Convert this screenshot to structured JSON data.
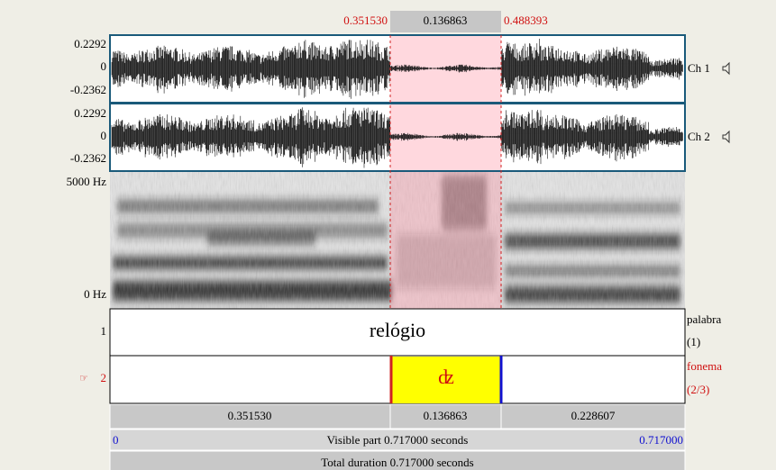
{
  "selection": {
    "start": "0.351530",
    "duration": "0.136863",
    "end": "0.488393"
  },
  "channels": [
    {
      "max": "0.2292",
      "zero": "0",
      "min": "-0.2362",
      "label": "Ch 1"
    },
    {
      "max": "0.2292",
      "zero": "0",
      "min": "-0.2362",
      "label": "Ch 2"
    }
  ],
  "spectrogram": {
    "max": "5000 Hz",
    "min": "0 Hz"
  },
  "tiers": [
    {
      "number": "1",
      "name": "palabra",
      "count": "(1)",
      "interval": "relógio"
    },
    {
      "number": "2",
      "name": "fonema",
      "count": "(2/3)",
      "interval": "ʣ"
    }
  ],
  "durations": [
    "0.351530",
    "0.136863",
    "0.228607"
  ],
  "visible": {
    "start": "0",
    "label": "Visible part 0.717000 seconds",
    "end": "0.717000"
  },
  "total": "Total duration 0.717000 seconds"
}
